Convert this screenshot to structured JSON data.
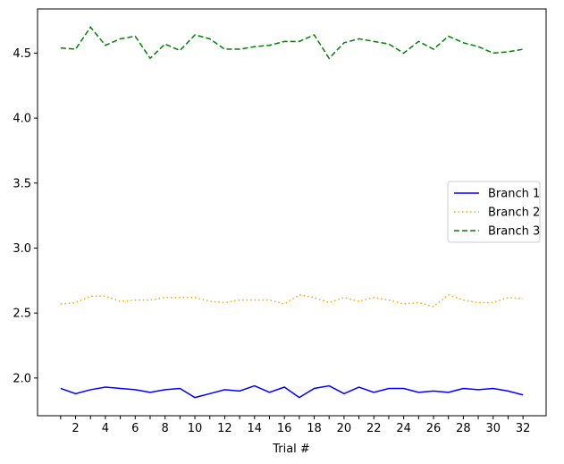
{
  "chart_data": {
    "type": "line",
    "xlabel": "Trial #",
    "ylabel": "",
    "xlim": [
      -0.55,
      33.55
    ],
    "ylim": [
      1.71,
      4.84
    ],
    "x": [
      1,
      2,
      3,
      4,
      5,
      6,
      7,
      8,
      9,
      10,
      11,
      12,
      13,
      14,
      15,
      16,
      17,
      18,
      19,
      20,
      21,
      22,
      23,
      24,
      25,
      26,
      27,
      28,
      29,
      30,
      31,
      32
    ],
    "x_ticks": [
      1,
      2,
      3,
      4,
      5,
      6,
      7,
      8,
      9,
      10,
      11,
      12,
      13,
      14,
      15,
      16,
      17,
      18,
      19,
      20,
      21,
      22,
      23,
      24,
      25,
      26,
      27,
      28,
      29,
      30,
      31,
      32
    ],
    "x_tick_labels": [
      "",
      "2",
      "",
      "4",
      "",
      "6",
      "",
      "8",
      "",
      "10",
      "",
      "12",
      "",
      "14",
      "",
      "16",
      "",
      "18",
      "",
      "20",
      "",
      "22",
      "",
      "24",
      "",
      "26",
      "",
      "28",
      "",
      "30",
      "",
      "32"
    ],
    "y_ticks": [
      2.0,
      2.5,
      3.0,
      3.5,
      4.0,
      4.5
    ],
    "y_tick_labels": [
      "2.0",
      "2.5",
      "3.0",
      "3.5",
      "4.0",
      "4.5"
    ],
    "grid": false,
    "legend_placement": "center-right",
    "series": [
      {
        "name": "Branch 1",
        "color": "#0000ff",
        "dash": "solid",
        "values": [
          1.92,
          1.88,
          1.91,
          1.93,
          1.92,
          1.91,
          1.89,
          1.91,
          1.92,
          1.85,
          1.88,
          1.91,
          1.9,
          1.94,
          1.89,
          1.93,
          1.85,
          1.92,
          1.94,
          1.88,
          1.93,
          1.89,
          1.92,
          1.92,
          1.89,
          1.9,
          1.89,
          1.92,
          1.91,
          1.92,
          1.9,
          1.87
        ]
      },
      {
        "name": "Branch 2",
        "color": "#ffa500",
        "dash": "dotted",
        "values": [
          2.57,
          2.58,
          2.63,
          2.63,
          2.59,
          2.6,
          2.6,
          2.62,
          2.62,
          2.62,
          2.59,
          2.58,
          2.6,
          2.6,
          2.6,
          2.57,
          2.64,
          2.62,
          2.58,
          2.62,
          2.59,
          2.62,
          2.6,
          2.57,
          2.58,
          2.55,
          2.64,
          2.6,
          2.58,
          2.58,
          2.62,
          2.61
        ]
      },
      {
        "name": "Branch 3",
        "color": "#008000",
        "dash": "dashed",
        "values": [
          4.54,
          4.53,
          4.7,
          4.56,
          4.61,
          4.63,
          4.46,
          4.57,
          4.52,
          4.64,
          4.61,
          4.53,
          4.53,
          4.55,
          4.56,
          4.59,
          4.59,
          4.64,
          4.46,
          4.58,
          4.61,
          4.59,
          4.57,
          4.5,
          4.59,
          4.53,
          4.63,
          4.58,
          4.55,
          4.5,
          4.51,
          4.53
        ]
      }
    ]
  }
}
